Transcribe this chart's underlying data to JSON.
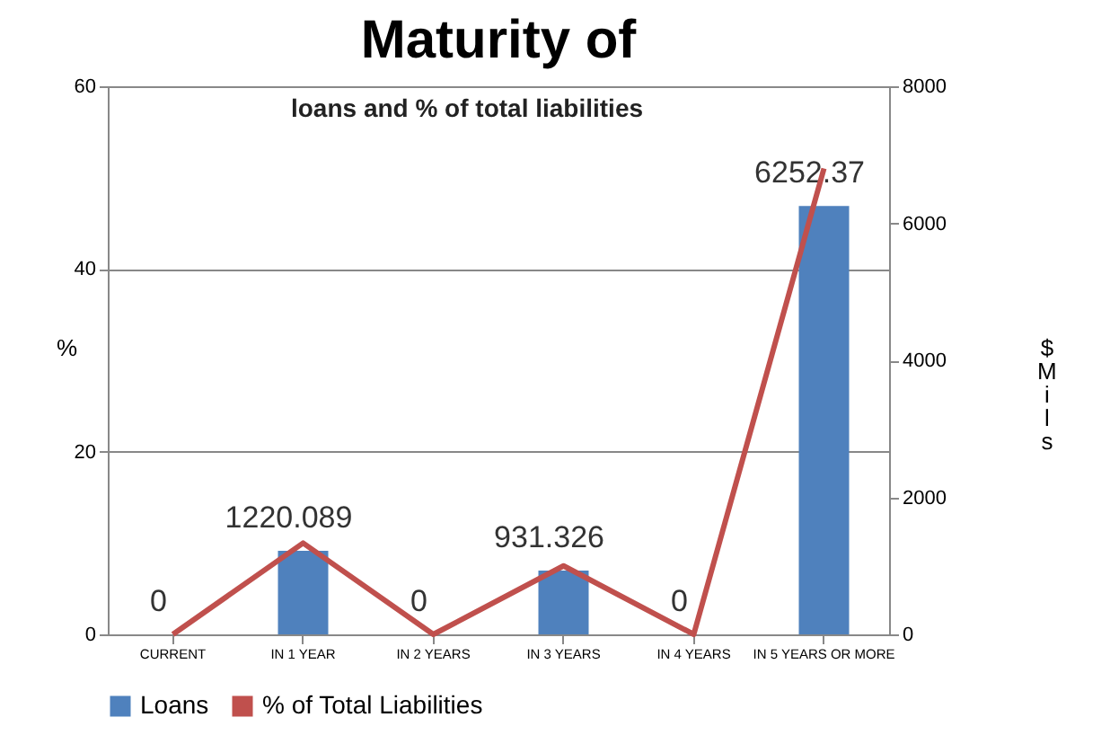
{
  "chart_data": {
    "type": "bar",
    "title": "Maturity of",
    "subtitle": "loans and % of total liabilities",
    "ylabel": "%",
    "y2label": "$Mils",
    "categories": [
      "CURRENT",
      "IN 1 YEAR",
      "IN 2 YEARS",
      "IN 3 YEARS",
      "IN 4 YEARS",
      "IN 5 YEARS OR MORE"
    ],
    "series": [
      {
        "name": "Loans",
        "color": "#4f81bd",
        "axis": "y2",
        "values": [
          0,
          1220.089,
          0,
          931.326,
          0,
          6252.37
        ],
        "value_labels": [
          "0",
          "1220.089",
          "0",
          "931.326",
          "0",
          "6252.37"
        ]
      },
      {
        "name": "% of Total Liabilities",
        "type": "line",
        "color": "#c0504d",
        "values": [
          0,
          10,
          0,
          7.5,
          0,
          51
        ]
      }
    ],
    "ylim": [
      0,
      60
    ],
    "yticks": [
      0,
      20,
      40,
      60
    ],
    "y2lim": [
      0,
      8000
    ],
    "y2ticks": [
      0,
      2000,
      4000,
      6000,
      8000
    ],
    "grid": "y",
    "legend": "bottom"
  }
}
